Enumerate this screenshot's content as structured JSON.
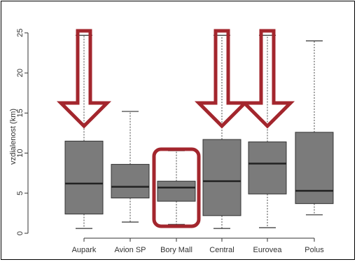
{
  "chart_data": {
    "type": "boxplot",
    "ylabel": "vzdialenost (km)",
    "ylim": [
      0,
      25
    ],
    "yticks": [
      0,
      5,
      10,
      15,
      20,
      25
    ],
    "categories": [
      "Aupark",
      "Avion SP",
      "Bory Mall",
      "Central",
      "Eurovea",
      "Polus"
    ],
    "boxes": [
      {
        "name": "Aupark",
        "min": 0.6,
        "q1": 2.4,
        "median": 6.2,
        "q3": 11.5,
        "max": 24.7
      },
      {
        "name": "Avion SP",
        "min": 1.4,
        "q1": 4.4,
        "median": 5.8,
        "q3": 8.6,
        "max": 15.2
      },
      {
        "name": "Bory Mall",
        "min": 1.1,
        "q1": 4.0,
        "median": 5.7,
        "q3": 6.5,
        "max": 10.3
      },
      {
        "name": "Central",
        "min": 0.6,
        "q1": 2.2,
        "median": 6.5,
        "q3": 11.7,
        "max": 24.7
      },
      {
        "name": "Eurovea",
        "min": 0.7,
        "q1": 4.9,
        "median": 8.7,
        "q3": 11.4,
        "max": 24.7
      },
      {
        "name": "Polus",
        "min": 2.3,
        "q1": 3.7,
        "median": 5.3,
        "q3": 12.6,
        "max": 24.0
      }
    ],
    "annotations": {
      "down_arrows": [
        "Aupark",
        "Central",
        "Eurovea"
      ],
      "highlight_box": "Bory Mall",
      "color": "#a3262d"
    },
    "box_color": "#7b7b7b",
    "grid": false
  }
}
